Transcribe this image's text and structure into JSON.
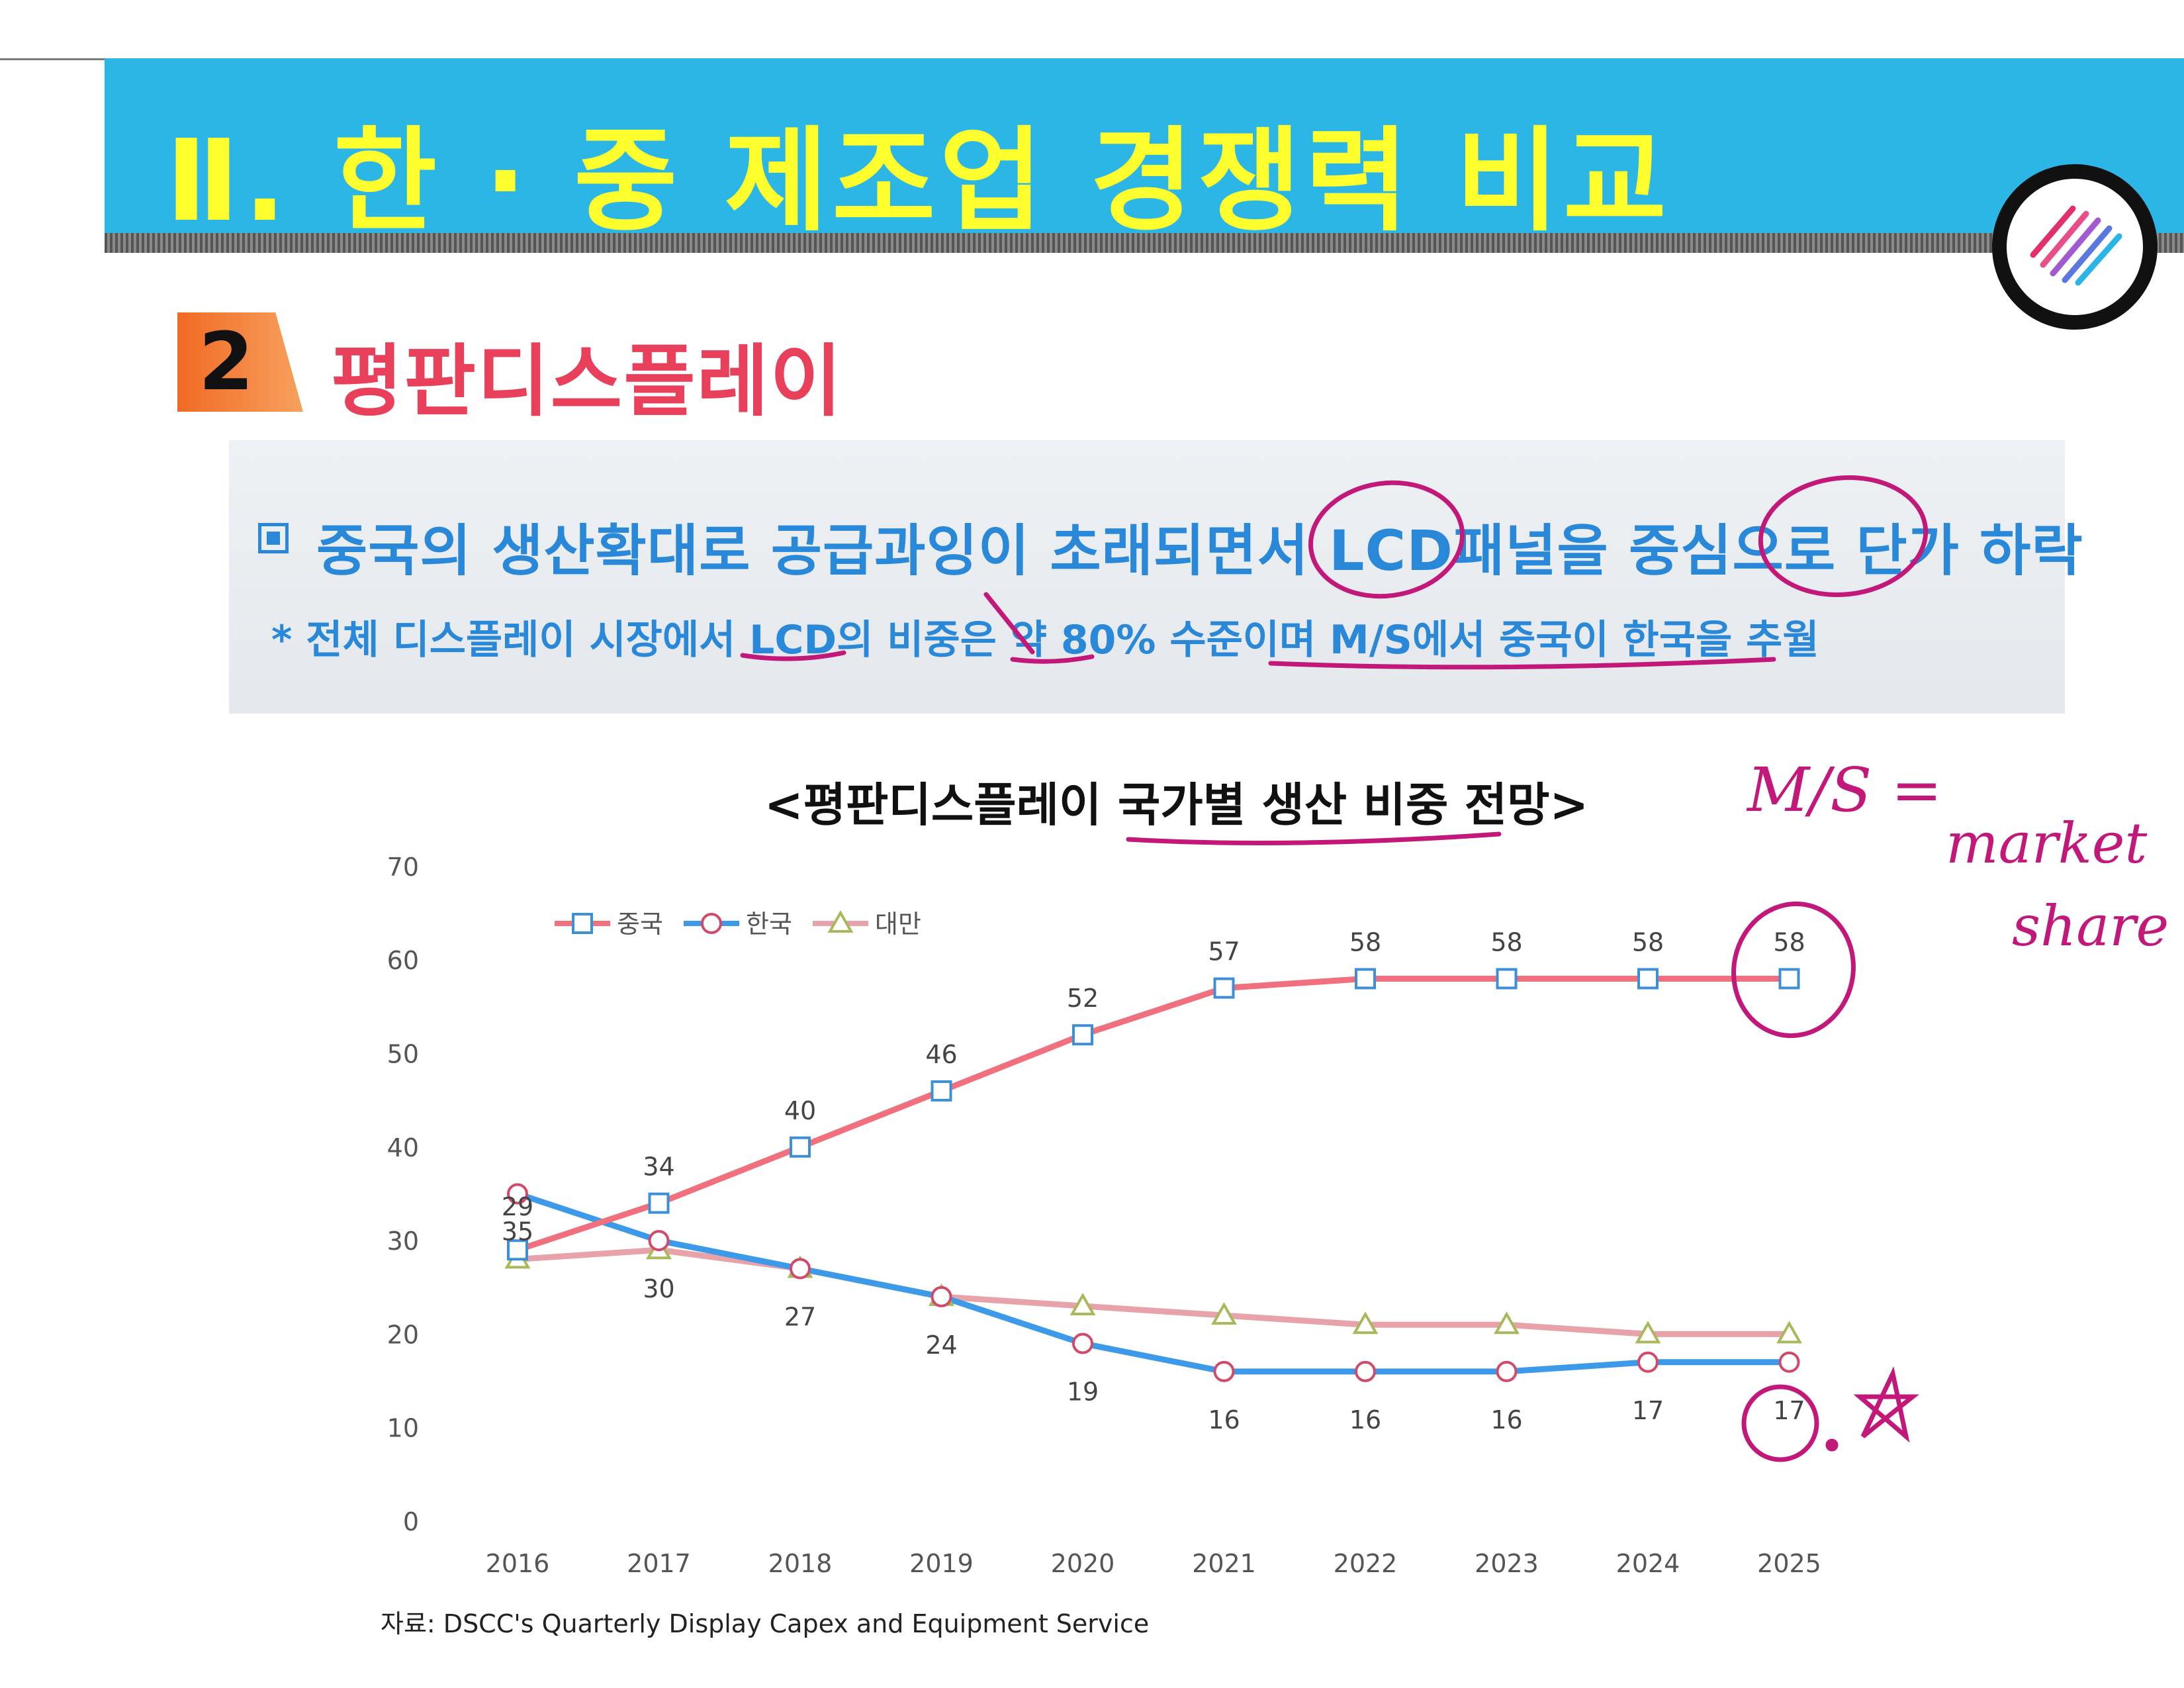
{
  "header": {
    "title": "Ⅱ. 한 · 중 제조업 경쟁력 비교"
  },
  "section": {
    "number": "2",
    "title": "평판디스플레이"
  },
  "summary": {
    "headline": "중국의 생산확대로 공급과잉이 초래되면서 LCD패널을 중심으로 단가 하락",
    "note": "* 전체 디스플레이 시장에서 LCD의 비중은 약 80% 수준이며 M/S에서 중국이 한국을 추월"
  },
  "annotations": {
    "ms_line1": "M/S =",
    "ms_line2": "market",
    "ms_line3": "share"
  },
  "colors": {
    "china": "#f0707e",
    "korea": "#3d9ae8",
    "taiwan": "#e8a2aa",
    "banner": "#2cb6e6",
    "title_yellow": "#ffff2e",
    "ink": "#c2187a"
  },
  "chart_data": {
    "type": "line",
    "title": "<평판디스플레이 국가별 생산 비중 전망>",
    "x": [
      "2016",
      "2017",
      "2018",
      "2019",
      "2020",
      "2021",
      "2022",
      "2023",
      "2024",
      "2025"
    ],
    "ylim": [
      0,
      70
    ],
    "yticks": [
      0,
      10,
      20,
      30,
      40,
      50,
      60,
      70
    ],
    "legend_position": "top-left",
    "series": [
      {
        "name": "중국",
        "marker": "square",
        "values": [
          29,
          34,
          40,
          46,
          52,
          57,
          58,
          58,
          58,
          58
        ],
        "labels": true
      },
      {
        "name": "한국",
        "marker": "circle",
        "values": [
          35,
          30,
          27,
          24,
          19,
          16,
          16,
          16,
          17,
          17
        ],
        "labels": true
      },
      {
        "name": "대만",
        "marker": "triangle",
        "values": [
          28,
          29,
          27,
          24,
          23,
          22,
          21,
          21,
          20,
          20
        ],
        "labels": false
      }
    ],
    "source": "자료: DSCC's Quarterly Display Capex and Equipment Service"
  }
}
